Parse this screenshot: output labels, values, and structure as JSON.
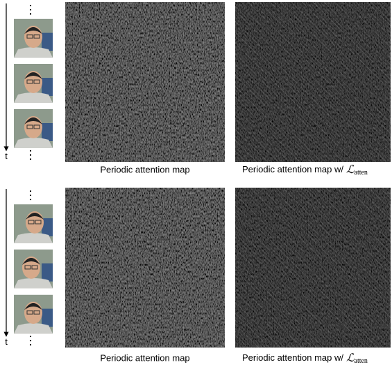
{
  "rows": [
    {
      "time_label": "t",
      "captions": [
        {
          "text": "Periodic attention map"
        },
        {
          "text": "Periodic attention map w/",
          "symbol": "ℒ",
          "subscript": "atten"
        }
      ]
    },
    {
      "time_label": "t",
      "captions": [
        {
          "text": "Periodic attention map"
        },
        {
          "text": "Periodic attention map w/",
          "symbol": "ℒ",
          "subscript": "atten"
        }
      ]
    }
  ]
}
